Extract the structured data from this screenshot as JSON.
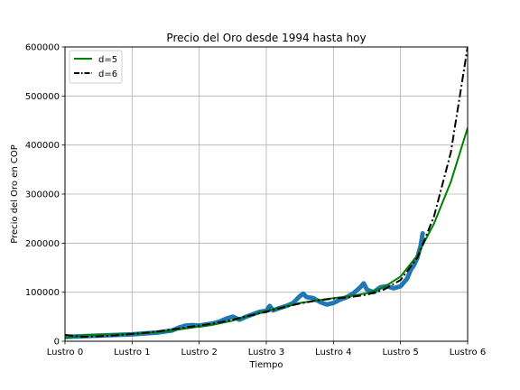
{
  "chart_data": {
    "type": "line",
    "title": "Precio del Oro desde 1994 hasta hoy",
    "xlabel": "Tiempo",
    "ylabel": "Precio del Oro en COP",
    "xlim": [
      0,
      6
    ],
    "ylim": [
      0,
      600000
    ],
    "x_tick_labels": [
      "Lustro 0",
      "Lustro 1",
      "Lustro 2",
      "Lustro 3",
      "Lustro 4",
      "Lustro 5",
      "Lustro 6"
    ],
    "y_tick_labels": [
      "0",
      "100000",
      "200000",
      "300000",
      "400000",
      "500000",
      "600000"
    ],
    "grid": true,
    "legend_position": "upper-left",
    "series": [
      {
        "name": "",
        "style": "data",
        "color": "#1f77b4",
        "x": [
          0,
          0.2,
          0.4,
          0.6,
          0.8,
          1.0,
          1.2,
          1.4,
          1.6,
          1.7,
          1.8,
          1.9,
          2.0,
          2.1,
          2.2,
          2.3,
          2.4,
          2.5,
          2.6,
          2.7,
          2.8,
          2.9,
          3.0,
          3.05,
          3.1,
          3.2,
          3.3,
          3.4,
          3.5,
          3.55,
          3.6,
          3.7,
          3.8,
          3.9,
          4.0,
          4.1,
          4.2,
          4.3,
          4.4,
          4.45,
          4.5,
          4.6,
          4.7,
          4.8,
          4.9,
          5.0,
          5.05,
          5.1,
          5.15,
          5.2,
          5.25,
          5.3,
          5.33
        ],
        "y": [
          9000,
          10000,
          11000,
          12000,
          13000,
          14000,
          16000,
          18000,
          22000,
          28000,
          32000,
          33000,
          32000,
          34000,
          36000,
          40000,
          46000,
          50000,
          44000,
          50000,
          55000,
          60000,
          62000,
          72000,
          63000,
          68000,
          72000,
          78000,
          92000,
          97000,
          90000,
          88000,
          80000,
          75000,
          78000,
          85000,
          90000,
          98000,
          110000,
          118000,
          105000,
          100000,
          110000,
          112000,
          108000,
          112000,
          120000,
          128000,
          145000,
          155000,
          170000,
          195000,
          220000
        ]
      },
      {
        "name": "d=5",
        "style": "solid",
        "color": "#008000",
        "x": [
          0,
          0.25,
          0.5,
          0.75,
          1.0,
          1.25,
          1.5,
          1.75,
          2.0,
          2.25,
          2.5,
          2.75,
          3.0,
          3.25,
          3.5,
          3.75,
          4.0,
          4.25,
          4.5,
          4.75,
          5.0,
          5.25,
          5.5,
          5.75,
          6.0
        ],
        "y": [
          6000,
          12000,
          13500,
          14000,
          15000,
          17000,
          20000,
          25000,
          30000,
          35000,
          42000,
          52000,
          62000,
          70000,
          78000,
          83000,
          88000,
          92000,
          98000,
          110000,
          132000,
          175000,
          240000,
          325000,
          435000
        ]
      },
      {
        "name": "d=6",
        "style": "dashdot",
        "color": "#000000",
        "x": [
          0,
          0.25,
          0.5,
          0.75,
          1.0,
          1.25,
          1.5,
          1.75,
          2.0,
          2.25,
          2.5,
          2.75,
          3.0,
          3.25,
          3.5,
          3.75,
          4.0,
          4.25,
          4.5,
          4.75,
          5.0,
          5.25,
          5.5,
          5.75,
          6.0
        ],
        "y": [
          13000,
          9000,
          10000,
          12000,
          15000,
          18000,
          22000,
          27000,
          32000,
          37000,
          44000,
          52000,
          60000,
          69000,
          77000,
          83000,
          87000,
          90000,
          95000,
          105000,
          125000,
          170000,
          255000,
          385000,
          600000
        ]
      }
    ]
  }
}
